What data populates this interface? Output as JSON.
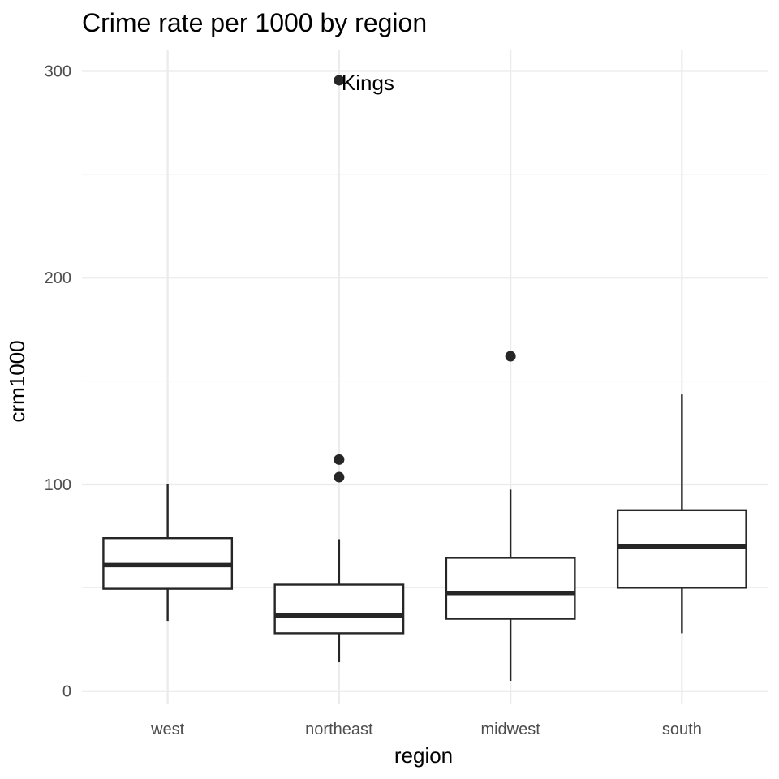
{
  "chart_data": {
    "type": "boxplot",
    "title": "Crime rate per 1000 by region",
    "xlabel": "region",
    "ylabel": "crm1000",
    "ylim": [
      -6,
      310
    ],
    "y_ticks": [
      0,
      100,
      200,
      300
    ],
    "y_minor_ticks": [
      50,
      150,
      250
    ],
    "grid": true,
    "legend": "none",
    "categories": [
      "west",
      "northeast",
      "midwest",
      "south"
    ],
    "boxes": [
      {
        "category": "west",
        "whisker_low": 34,
        "q1": 49.5,
        "median": 61,
        "q3": 74,
        "whisker_high": 100,
        "outliers": []
      },
      {
        "category": "northeast",
        "whisker_low": 14,
        "q1": 28,
        "median": 36.5,
        "q3": 51.5,
        "whisker_high": 73.5,
        "outliers": [
          103.5,
          112,
          295.5
        ]
      },
      {
        "category": "midwest",
        "whisker_low": 5,
        "q1": 35,
        "median": 47.5,
        "q3": 64.5,
        "whisker_high": 97.5,
        "outliers": [
          162
        ]
      },
      {
        "category": "south",
        "whisker_low": 28,
        "q1": 50,
        "median": 70,
        "q3": 87.5,
        "whisker_high": 143.5,
        "outliers": []
      }
    ],
    "annotations": [
      {
        "text": "Kings",
        "category": "northeast",
        "y": 295.5
      }
    ]
  }
}
